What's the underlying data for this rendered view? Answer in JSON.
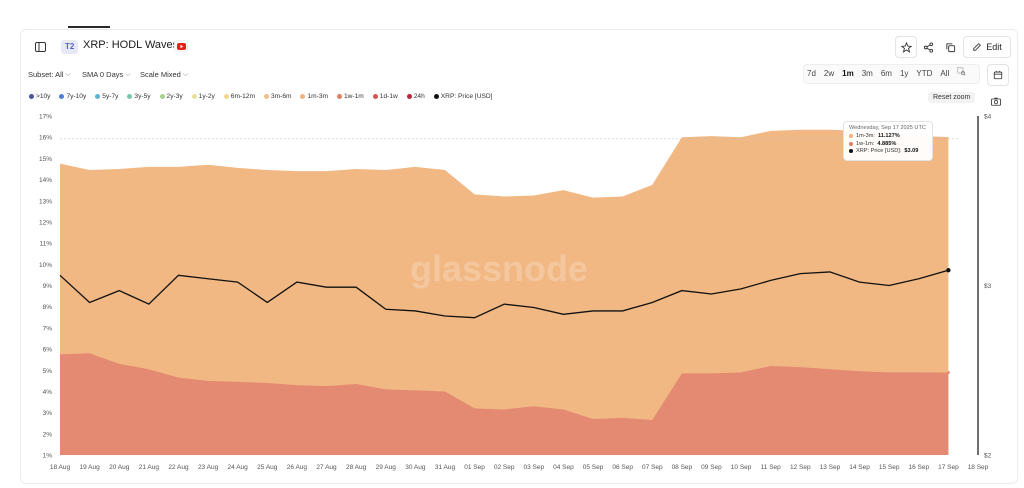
{
  "header": {
    "tag": "T2",
    "title": "XRP: HODL Waves",
    "edit_label": "Edit"
  },
  "controls": {
    "subset": "Subset: All",
    "sma": "SMA 0 Days",
    "scale": "Scale Mixed",
    "ranges": [
      "7d",
      "2w",
      "1m",
      "3m",
      "6m",
      "1y",
      "YTD",
      "All"
    ],
    "active_range": "1m",
    "reset_zoom": "Reset zoom"
  },
  "legend": [
    {
      "label": ">10y",
      "color": "#4b4f9c"
    },
    {
      "label": "7y-10y",
      "color": "#4f7fd1"
    },
    {
      "label": "5y-7y",
      "color": "#5fb3cf"
    },
    {
      "label": "3y-5y",
      "color": "#78c7a8"
    },
    {
      "label": "2y-3y",
      "color": "#a9d18e"
    },
    {
      "label": "1y-2y",
      "color": "#e6e29a"
    },
    {
      "label": "6m-12m",
      "color": "#f3d68f"
    },
    {
      "label": "3m-6m",
      "color": "#f1be86"
    },
    {
      "label": "1m-3m",
      "color": "#f0b27e"
    },
    {
      "label": "1w-1m",
      "color": "#e17f65"
    },
    {
      "label": "1d-1w",
      "color": "#d9534f"
    },
    {
      "label": "24h",
      "color": "#b7283c"
    },
    {
      "label": "XRP: Price [USD]",
      "color": "#111111"
    }
  ],
  "tooltip": {
    "date": "Wednesday, Sep 17 2025 UTC",
    "rows": [
      {
        "label": "1m-3m:",
        "value": "11.127%",
        "color": "#f0b27e"
      },
      {
        "label": "1w-1m:",
        "value": "4.885%",
        "color": "#e17f65"
      },
      {
        "label": "XRP: Price [USD]:",
        "value": "$3.09",
        "color": "#111111"
      }
    ]
  },
  "watermark": "glassnode",
  "chart_data": {
    "type": "area",
    "title": "XRP: HODL Waves",
    "x": [
      "18 Aug",
      "19 Aug",
      "20 Aug",
      "21 Aug",
      "22 Aug",
      "23 Aug",
      "24 Aug",
      "25 Aug",
      "26 Aug",
      "27 Aug",
      "28 Aug",
      "29 Aug",
      "30 Aug",
      "31 Aug",
      "01 Sep",
      "02 Sep",
      "03 Sep",
      "04 Sep",
      "05 Sep",
      "06 Sep",
      "07 Sep",
      "08 Sep",
      "09 Sep",
      "10 Sep",
      "11 Sep",
      "12 Sep",
      "13 Sep",
      "14 Sep",
      "15 Sep",
      "16 Sep",
      "17 Sep"
    ],
    "x_ticks": [
      "18 Aug",
      "19 Aug",
      "20 Aug",
      "21 Aug",
      "22 Aug",
      "23 Aug",
      "24 Aug",
      "25 Aug",
      "26 Aug",
      "27 Aug",
      "28 Aug",
      "29 Aug",
      "30 Aug",
      "31 Aug",
      "01 Sep",
      "02 Sep",
      "03 Sep",
      "04 Sep",
      "05 Sep",
      "06 Sep",
      "07 Sep",
      "08 Sep",
      "09 Sep",
      "10 Sep",
      "11 Sep",
      "12 Sep",
      "13 Sep",
      "14 Sep",
      "15 Sep",
      "16 Sep",
      "17 Sep",
      "18 Sep"
    ],
    "y_left_ticks": [
      "1%",
      "2%",
      "3%",
      "4%",
      "5%",
      "6%",
      "7%",
      "8%",
      "9%",
      "10%",
      "11%",
      "12%",
      "13%",
      "14%",
      "15%",
      "16%",
      "17%"
    ],
    "y_left_range": [
      1,
      17
    ],
    "y_right_ticks": [
      "$2",
      "$3",
      "$4"
    ],
    "y_right_range": [
      2,
      4
    ],
    "series": [
      {
        "name": "1w-1m",
        "kind": "area",
        "color": "#e48a73",
        "values": [
          5.75,
          5.8,
          5.3,
          5.05,
          4.65,
          4.5,
          4.45,
          4.4,
          4.3,
          4.25,
          4.35,
          4.1,
          4.05,
          4.0,
          3.2,
          3.15,
          3.3,
          3.15,
          2.7,
          2.75,
          2.65,
          4.85,
          4.85,
          4.9,
          5.2,
          5.15,
          5.05,
          4.95,
          4.9,
          4.9,
          4.89
        ]
      },
      {
        "name": "1m-3m",
        "kind": "area_top",
        "color": "#f1b883",
        "values": [
          14.75,
          14.45,
          14.5,
          14.6,
          14.6,
          14.7,
          14.55,
          14.45,
          14.4,
          14.4,
          14.5,
          14.45,
          14.6,
          14.45,
          13.3,
          13.2,
          13.25,
          13.5,
          13.15,
          13.2,
          13.75,
          16.0,
          16.05,
          16.0,
          16.3,
          16.35,
          16.35,
          16.3,
          16.2,
          16.05,
          16.01
        ]
      },
      {
        "name": "XRP: Price [USD]",
        "kind": "line",
        "axis": "right",
        "color": "#111111",
        "values": [
          3.06,
          2.9,
          2.97,
          2.89,
          3.06,
          3.04,
          3.02,
          2.9,
          3.02,
          2.99,
          2.99,
          2.86,
          2.85,
          2.82,
          2.81,
          2.89,
          2.87,
          2.83,
          2.85,
          2.85,
          2.9,
          2.97,
          2.95,
          2.98,
          3.03,
          3.07,
          3.08,
          3.02,
          3.0,
          3.04,
          3.09
        ]
      }
    ],
    "annotations": [
      {
        "text": "Wednesday, Sep 17 2025 UTC",
        "x": "17 Sep"
      }
    ],
    "grid": false,
    "legend_position": "top-left"
  }
}
